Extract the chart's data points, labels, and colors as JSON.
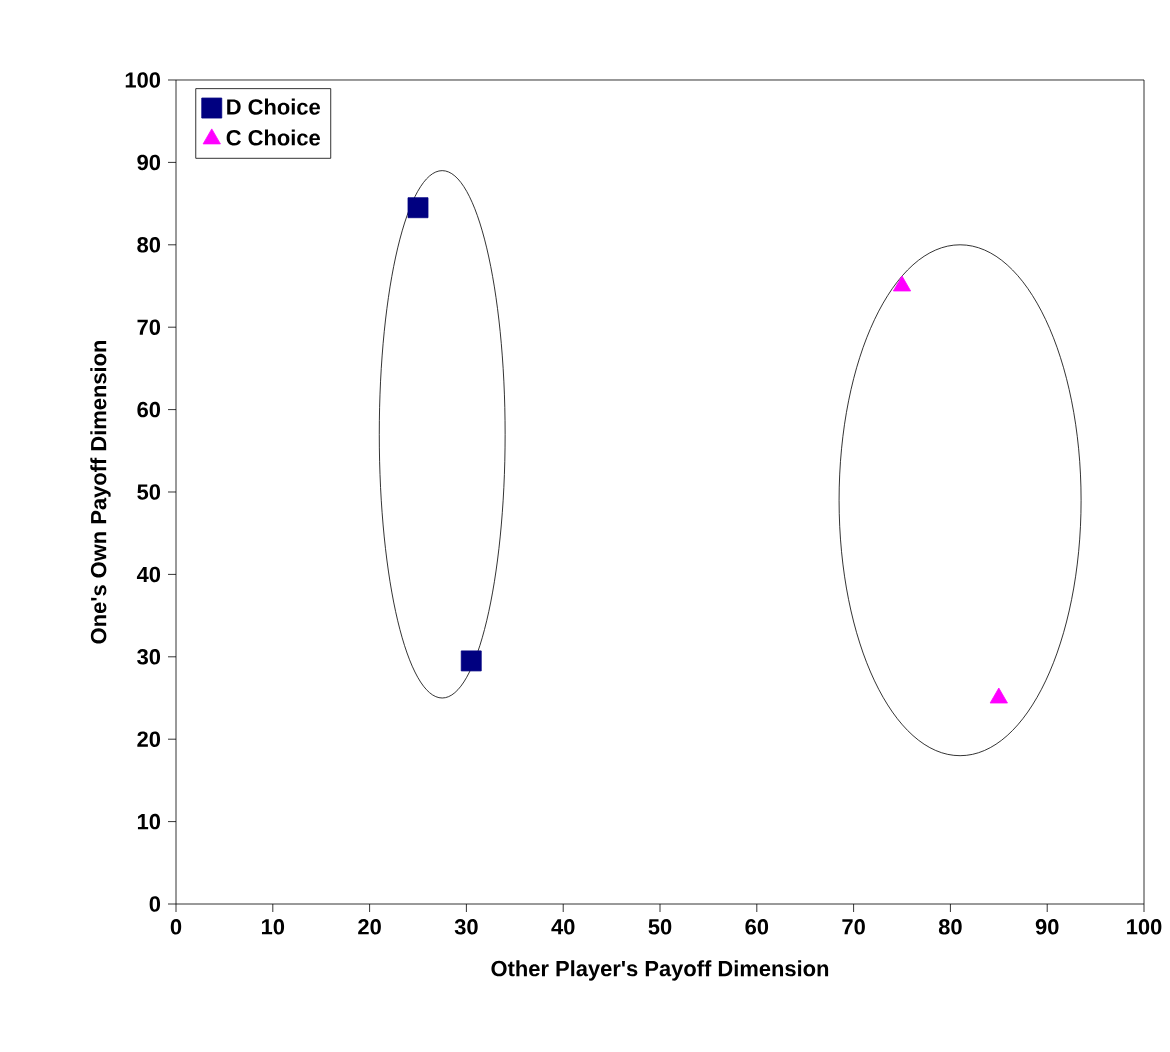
{
  "chart_data": {
    "type": "scatter",
    "xlabel": "Other Player's Payoff Dimension",
    "ylabel": "One's Own Payoff Dimension",
    "series": [
      {
        "name": "D Choice",
        "color": "#000080",
        "marker": "square",
        "x": [
          25,
          30.5
        ],
        "values": [
          84.5,
          29.5
        ]
      },
      {
        "name": "C Choice",
        "color": "#ff00ff",
        "marker": "triangle",
        "x": [
          75,
          85
        ],
        "values": [
          75,
          25
        ]
      }
    ],
    "xlim": [
      0,
      100
    ],
    "ylim": [
      0,
      100
    ],
    "xticks": [
      0,
      10,
      20,
      30,
      40,
      50,
      60,
      70,
      80,
      90,
      100
    ],
    "yticks": [
      0,
      10,
      20,
      30,
      40,
      50,
      60,
      70,
      80,
      90,
      100
    ],
    "grid": false,
    "legend": "top left"
  }
}
